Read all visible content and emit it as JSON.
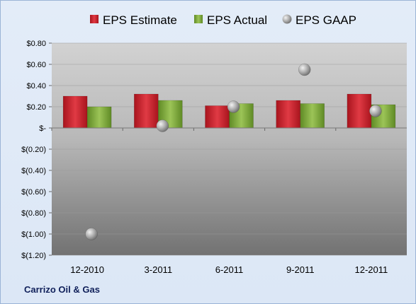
{
  "company": "Carrizo Oil & Gas",
  "colors": {
    "estimate": "#cc1f2a",
    "actual": "#7faa3c",
    "gaap": "#b3b3b3",
    "plot_top": "#cfcfcf",
    "plot_bottom": "#7a7a7a",
    "frame": "#dce7f6"
  },
  "chart_data": {
    "type": "bar",
    "categories": [
      "12-2010",
      "3-2011",
      "6-2011",
      "9-2011",
      "12-2011"
    ],
    "series": [
      {
        "name": "EPS Estimate",
        "type": "bar",
        "values": [
          0.3,
          0.32,
          0.21,
          0.26,
          0.32
        ]
      },
      {
        "name": "EPS Actual",
        "type": "bar",
        "values": [
          0.2,
          0.26,
          0.23,
          0.23,
          0.22
        ]
      },
      {
        "name": "EPS GAAP",
        "type": "scatter",
        "values": [
          -1.0,
          0.02,
          0.2,
          0.55,
          0.16
        ]
      }
    ],
    "ylim": [
      -1.2,
      0.8
    ],
    "yticks": [
      0.8,
      0.6,
      0.4,
      0.2,
      0.0,
      -0.2,
      -0.4,
      -0.6,
      -0.8,
      -1.0,
      -1.2
    ],
    "ytick_labels": [
      "$0.80",
      "$0.60",
      "$0.40",
      "$0.20",
      "$-",
      "$(0.20)",
      "$(0.40)",
      "$(0.60)",
      "$(0.80)",
      "$(1.00)",
      "$(1.20)"
    ],
    "legend_position": "top",
    "grid": true
  }
}
